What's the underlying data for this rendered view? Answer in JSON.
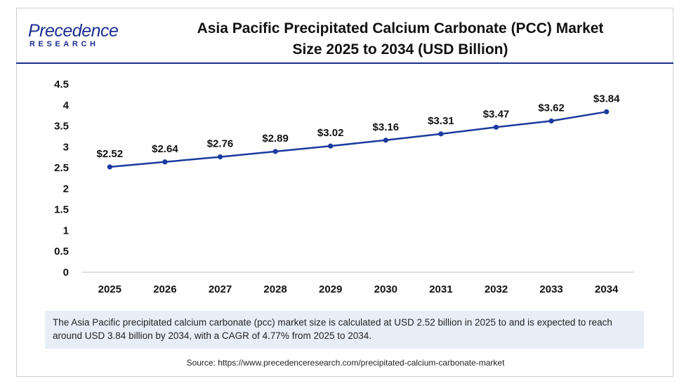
{
  "logo": {
    "main": "Precedence",
    "sub": "RESEARCH"
  },
  "title_line1": "Asia Pacific Precipitated Calcium Carbonate (PCC) Market",
  "title_line2": "Size 2025 to 2034 (USD Billion)",
  "note": "The Asia Pacific precipitated calcium carbonate (pcc) market size is calculated at USD 2.52 billion in 2025 to and is expected to reach around USD 3.84 billion by 2034, with a CAGR of 4.77% from 2025 to 2034.",
  "source": "Source: https://www.precedenceresearch.com/precipitated-calcium-carbonate-market",
  "colors": {
    "line": "#1b3a9e",
    "brand": "#1b2d8f",
    "note_bg": "#e8eef8"
  },
  "chart_data": {
    "type": "line",
    "title": "Asia Pacific Precipitated Calcium Carbonate (PCC) Market Size 2025 to 2034 (USD Billion)",
    "categories": [
      "2025",
      "2026",
      "2027",
      "2028",
      "2029",
      "2030",
      "2031",
      "2032",
      "2033",
      "2034"
    ],
    "values": [
      2.52,
      2.64,
      2.76,
      2.89,
      3.02,
      3.16,
      3.31,
      3.47,
      3.62,
      3.84
    ],
    "labels": [
      "$2.52",
      "$2.64",
      "$2.76",
      "$2.89",
      "$3.02",
      "$3.16",
      "$3.31",
      "$3.47",
      "$3.62",
      "$3.84"
    ],
    "yticks": [
      "0",
      "0.5",
      "1",
      "1.5",
      "2",
      "2.5",
      "3",
      "3.5",
      "4",
      "4.5"
    ],
    "ylim": [
      0,
      4.5
    ],
    "grid": false,
    "legend": "none"
  }
}
